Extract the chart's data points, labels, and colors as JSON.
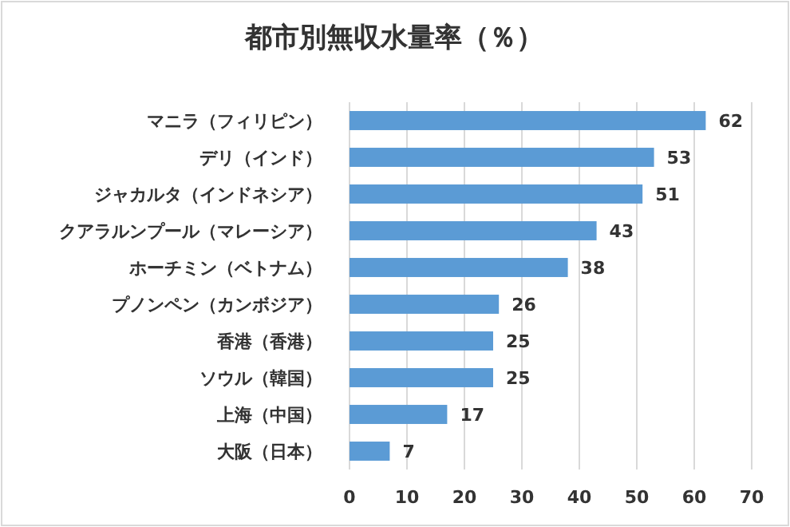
{
  "chart_data": {
    "type": "bar",
    "orientation": "horizontal",
    "title": "都市別無収水量率（％）",
    "categories": [
      "マニラ（フィリピン）",
      "デリ（インド）",
      "ジャカルタ（インドネシア）",
      "クアラルンプール（マレーシア）",
      "ホーチミン（ベトナム）",
      "プノンペン（カンボジア）",
      "香港（香港）",
      "ソウル（韓国）",
      "上海（中国）",
      "大阪（日本）"
    ],
    "values": [
      62,
      53,
      51,
      43,
      38,
      26,
      25,
      25,
      17,
      7
    ],
    "color": "#5b9bd5",
    "xlim": [
      0,
      70
    ],
    "xticks": [
      0,
      10,
      20,
      30,
      40,
      50,
      60,
      70
    ],
    "grid": "x",
    "data_labels": true
  }
}
